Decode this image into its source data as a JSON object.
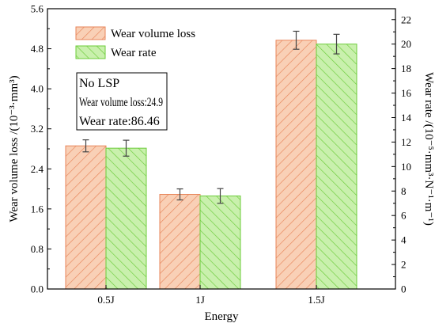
{
  "chart_data": {
    "type": "bar",
    "categories": [
      "0.5J",
      "1J",
      "1.5J"
    ],
    "xlabel": "Energy",
    "ylabel_left": "Wear volume loss /(10⁻³·mm³)",
    "ylabel_right": "Wear rate /(10⁻⁵·mm³·N⁻¹·m⁻¹)",
    "ylim_left": [
      0,
      5.6
    ],
    "yticks_left": [
      "0.0",
      "0.8",
      "1.6",
      "2.4",
      "3.2",
      "4.0",
      "4.8",
      "5.6"
    ],
    "ylim_right": [
      0,
      22.89
    ],
    "yticks_right": [
      "0",
      "2",
      "4",
      "6",
      "8",
      "10",
      "12",
      "14",
      "16",
      "18",
      "20",
      "22"
    ],
    "series": [
      {
        "name": "Wear volume loss",
        "axis": "left",
        "color": "#f9d0b6",
        "hatch_color": "#e8855a",
        "values": [
          2.86,
          1.89,
          4.97
        ],
        "errors": [
          0.12,
          0.11,
          0.18
        ]
      },
      {
        "name": "Wear rate",
        "axis": "right",
        "color": "#c9f0ad",
        "hatch_color": "#6ccc3a",
        "values": [
          11.5,
          7.6,
          20.0
        ],
        "errors": [
          0.65,
          0.6,
          0.8
        ]
      }
    ],
    "legend_position": "top-left",
    "grid": false
  },
  "annotation": {
    "lines": [
      "No LSP",
      "Wear volume loss:24.9",
      "Wear rate:86.46"
    ]
  }
}
